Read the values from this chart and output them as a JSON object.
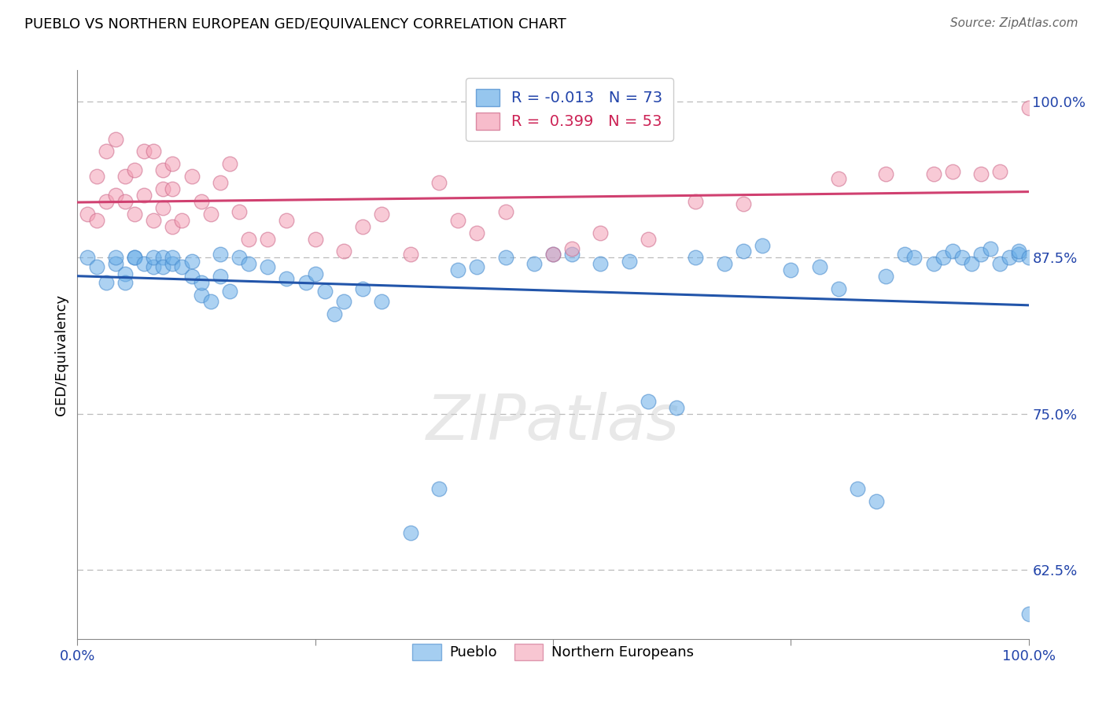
{
  "title": "PUEBLO VS NORTHERN EUROPEAN GED/EQUIVALENCY CORRELATION CHART",
  "source": "Source: ZipAtlas.com",
  "ylabel": "GED/Equivalency",
  "xlim": [
    0.0,
    1.0
  ],
  "ylim": [
    0.57,
    1.025
  ],
  "yticks": [
    0.625,
    0.75,
    0.875,
    1.0
  ],
  "ytick_labels": [
    "62.5%",
    "75.0%",
    "87.5%",
    "100.0%"
  ],
  "pueblo_R": -0.013,
  "pueblo_N": 73,
  "northern_R": 0.399,
  "northern_N": 53,
  "blue_color": "#6aaee8",
  "pink_color": "#f4a0b5",
  "blue_line_color": "#2255aa",
  "pink_line_color": "#d04070",
  "pueblo_x": [
    0.01,
    0.02,
    0.03,
    0.04,
    0.04,
    0.05,
    0.05,
    0.06,
    0.06,
    0.07,
    0.08,
    0.08,
    0.09,
    0.09,
    0.1,
    0.1,
    0.11,
    0.12,
    0.12,
    0.13,
    0.13,
    0.14,
    0.15,
    0.15,
    0.16,
    0.17,
    0.18,
    0.2,
    0.22,
    0.24,
    0.25,
    0.26,
    0.27,
    0.28,
    0.3,
    0.32,
    0.35,
    0.38,
    0.4,
    0.42,
    0.45,
    0.48,
    0.5,
    0.52,
    0.55,
    0.58,
    0.6,
    0.63,
    0.65,
    0.68,
    0.7,
    0.72,
    0.75,
    0.78,
    0.8,
    0.82,
    0.84,
    0.85,
    0.87,
    0.88,
    0.9,
    0.91,
    0.92,
    0.93,
    0.94,
    0.95,
    0.96,
    0.97,
    0.98,
    0.99,
    0.99,
    1.0,
    1.0
  ],
  "pueblo_y": [
    0.875,
    0.868,
    0.855,
    0.87,
    0.875,
    0.862,
    0.855,
    0.875,
    0.875,
    0.87,
    0.868,
    0.875,
    0.875,
    0.868,
    0.87,
    0.875,
    0.868,
    0.872,
    0.86,
    0.845,
    0.855,
    0.84,
    0.878,
    0.86,
    0.848,
    0.875,
    0.87,
    0.868,
    0.858,
    0.855,
    0.862,
    0.848,
    0.83,
    0.84,
    0.85,
    0.84,
    0.655,
    0.69,
    0.865,
    0.868,
    0.875,
    0.87,
    0.878,
    0.878,
    0.87,
    0.872,
    0.76,
    0.755,
    0.875,
    0.87,
    0.88,
    0.885,
    0.865,
    0.868,
    0.85,
    0.69,
    0.68,
    0.86,
    0.878,
    0.875,
    0.87,
    0.875,
    0.88,
    0.875,
    0.87,
    0.878,
    0.882,
    0.87,
    0.875,
    0.878,
    0.88,
    0.875,
    0.59
  ],
  "northern_x": [
    0.01,
    0.02,
    0.02,
    0.03,
    0.03,
    0.04,
    0.04,
    0.05,
    0.05,
    0.06,
    0.06,
    0.07,
    0.07,
    0.08,
    0.08,
    0.09,
    0.09,
    0.09,
    0.1,
    0.1,
    0.1,
    0.11,
    0.12,
    0.13,
    0.14,
    0.15,
    0.16,
    0.17,
    0.18,
    0.2,
    0.22,
    0.25,
    0.28,
    0.3,
    0.32,
    0.35,
    0.38,
    0.4,
    0.42,
    0.45,
    0.5,
    0.52,
    0.55,
    0.6,
    0.65,
    0.7,
    0.8,
    0.85,
    0.9,
    0.92,
    0.95,
    0.97,
    1.0
  ],
  "northern_y": [
    0.91,
    0.905,
    0.94,
    0.92,
    0.96,
    0.925,
    0.97,
    0.92,
    0.94,
    0.91,
    0.945,
    0.925,
    0.96,
    0.905,
    0.96,
    0.915,
    0.93,
    0.945,
    0.9,
    0.93,
    0.95,
    0.905,
    0.94,
    0.92,
    0.91,
    0.935,
    0.95,
    0.912,
    0.89,
    0.89,
    0.905,
    0.89,
    0.88,
    0.9,
    0.91,
    0.878,
    0.935,
    0.905,
    0.895,
    0.912,
    0.878,
    0.882,
    0.895,
    0.89,
    0.92,
    0.918,
    0.938,
    0.942,
    0.942,
    0.944,
    0.942,
    0.944,
    0.995
  ]
}
